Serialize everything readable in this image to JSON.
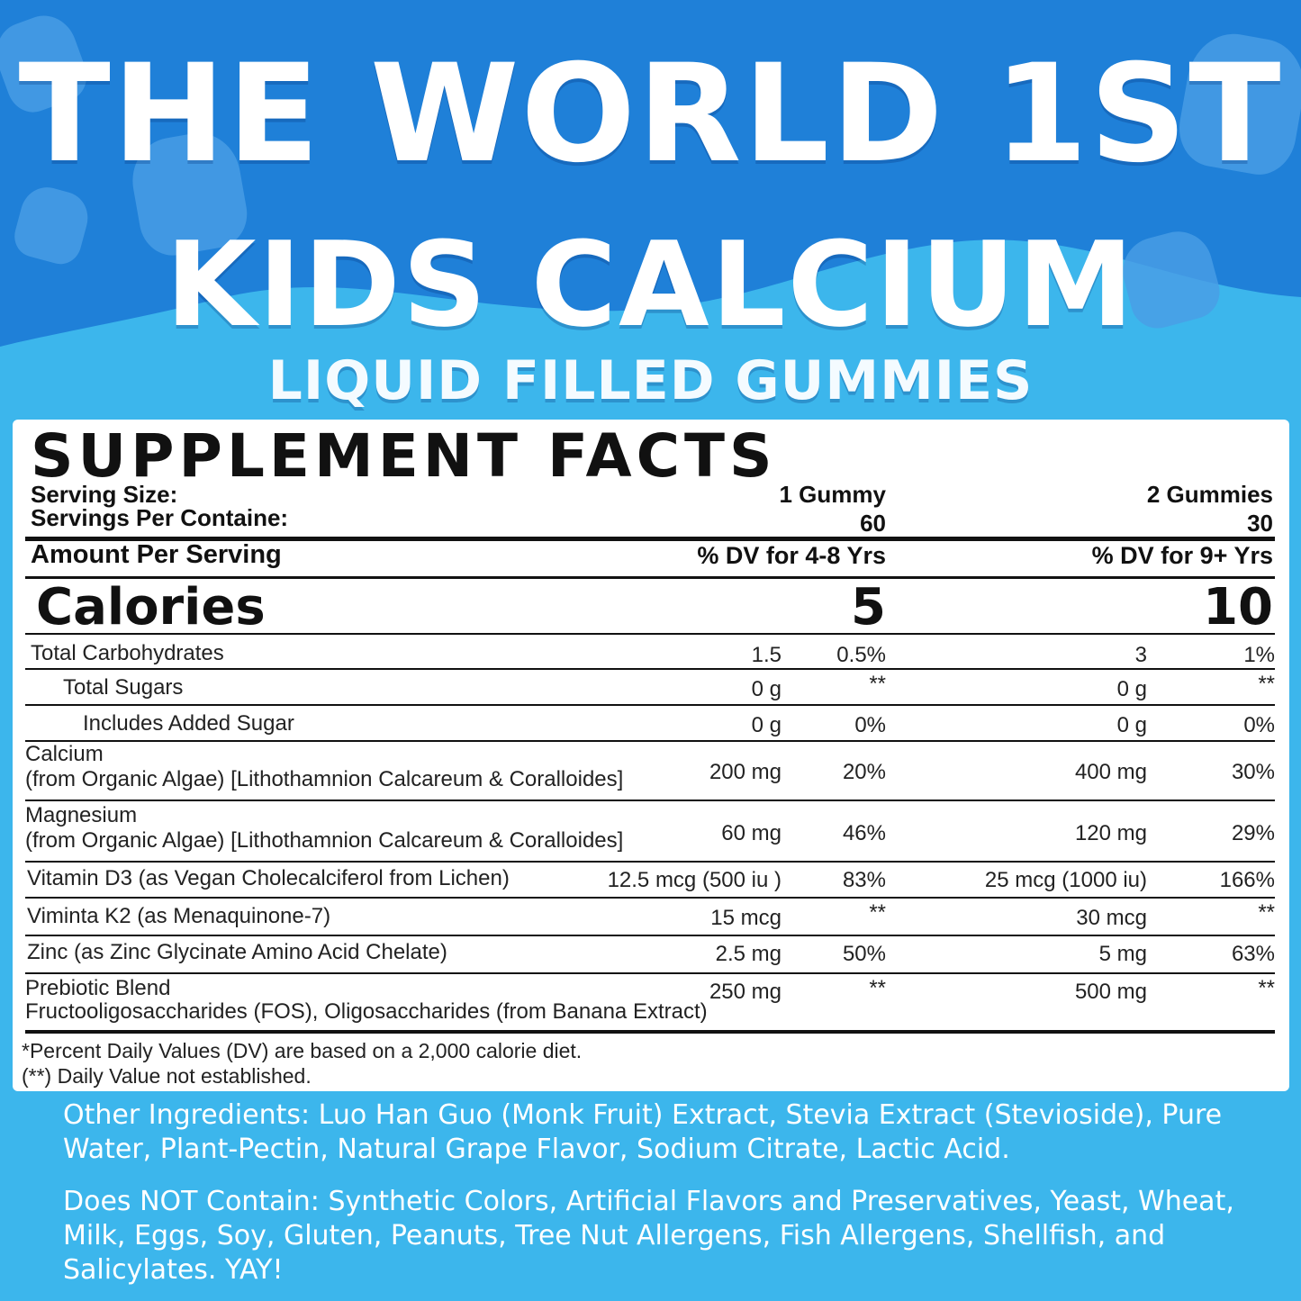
{
  "headline": {
    "line1": "THE WORLD 1ST",
    "line2": "KIDS CALCIUM",
    "line3": "LIQUID FILLED GUMMIES"
  },
  "colors": {
    "top_blue": "#1f80d8",
    "light_blue": "#3cb6ec",
    "text_dark": "#111111"
  },
  "facts": {
    "title": "SUPPLEMENT FACTS",
    "serving_size_label": "Serving Size:",
    "servings_per_container_label": "Servings Per Containe:",
    "col1": {
      "serving_size": "1 Gummy",
      "servings": "60",
      "dv_header": "% DV for 4-8 Yrs",
      "calories": "5"
    },
    "col2": {
      "serving_size": "2 Gummies",
      "servings": "30",
      "dv_header": "% DV for 9+ Yrs",
      "calories": "10"
    },
    "amount_per_serving": "Amount Per Serving",
    "calories_label": "Calories",
    "rows": [
      {
        "name": "Total Carbohydrates",
        "sub": "",
        "a1": "1.5",
        "d1": "0.5%",
        "a2": "3",
        "d2": "1%"
      },
      {
        "name": "Total Sugars",
        "sub": "",
        "a1": "0 g",
        "d1": "**",
        "a2": "0 g",
        "d2": "**"
      },
      {
        "name": "Includes Added Sugar",
        "sub": "",
        "a1": "0 g",
        "d1": "0%",
        "a2": "0 g",
        "d2": "0%"
      },
      {
        "name": "Calcium",
        "sub": "(from Organic Algae) [Lithothamnion Calcareum & Coralloides]",
        "a1": "200 mg",
        "d1": "20%",
        "a2": "400 mg",
        "d2": "30%"
      },
      {
        "name": "Magnesium",
        "sub": "(from Organic Algae) [Lithothamnion Calcareum & Coralloides]",
        "a1": "60 mg",
        "d1": "46%",
        "a2": "120 mg",
        "d2": "29%"
      },
      {
        "name": "Vitamin D3 (as Vegan Cholecalciferol from Lichen)",
        "sub": "",
        "a1": "12.5 mcg (500 iu )",
        "d1": "83%",
        "a2": "25 mcg (1000 iu)",
        "d2": "166%"
      },
      {
        "name": "Viminta K2 (as Menaquinone-7)",
        "sub": "",
        "a1": "15 mcg",
        "d1": "**",
        "a2": "30 mcg",
        "d2": "**"
      },
      {
        "name": "Zinc (as Zinc Glycinate Amino Acid Chelate)",
        "sub": "",
        "a1": "2.5 mg",
        "d1": "50%",
        "a2": "5 mg",
        "d2": "63%"
      },
      {
        "name": "Prebiotic Blend",
        "sub": "Fructooligosaccharides (FOS), Oligosaccharides (from Banana Extract)",
        "a1": "250 mg",
        "d1": "**",
        "a2": "500 mg",
        "d2": "**"
      }
    ],
    "footnote1": "*Percent Daily Values (DV) are based on a 2,000 calorie diet.",
    "footnote2": "(**) Daily Value not established."
  },
  "other_ingredients": "Other Ingredients: Luo Han Guo (Monk Fruit) Extract, Stevia Extract (Stevioside), Pure Water, Plant-Pectin, Natural Grape Flavor, Sodium Citrate, Lactic Acid.",
  "does_not_contain": "Does NOT Contain: Synthetic Colors, Artificial Flavors and Preservatives, Yeast, Wheat, Milk, Eggs, Soy, Gluten, Peanuts, Tree Nut Allergens, Fish Allergens, Shellfish, and Salicylates. YAY!"
}
